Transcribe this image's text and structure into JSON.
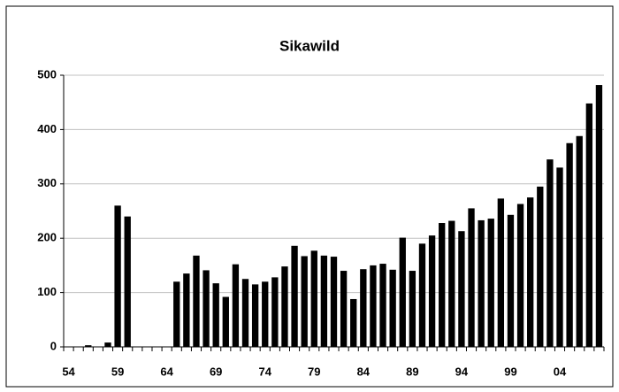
{
  "chart_data": {
    "type": "bar",
    "title": "Sikawild",
    "categories": [
      "54",
      null,
      null,
      null,
      null,
      "59",
      null,
      null,
      null,
      null,
      "64",
      null,
      null,
      null,
      null,
      "69",
      null,
      null,
      null,
      null,
      "74",
      null,
      null,
      null,
      null,
      "79",
      null,
      null,
      null,
      null,
      "84",
      null,
      null,
      null,
      null,
      "89",
      null,
      null,
      null,
      null,
      "94",
      null,
      null,
      null,
      null,
      "99",
      null,
      null,
      null,
      null,
      "04",
      null,
      null,
      null,
      null
    ],
    "values": [
      0,
      0,
      3,
      0,
      8,
      260,
      240,
      0,
      0,
      0,
      0,
      120,
      135,
      168,
      141,
      117,
      92,
      152,
      125,
      115,
      120,
      128,
      148,
      186,
      167,
      177,
      168,
      166,
      140,
      88,
      143,
      150,
      153,
      142,
      201,
      140,
      190,
      205,
      228,
      232,
      213,
      255,
      233,
      236,
      273,
      243,
      263,
      275,
      295,
      345,
      330,
      375,
      388,
      448,
      482
    ],
    "color": "#000000",
    "ylim": [
      0,
      500
    ],
    "yticks": [
      0,
      100,
      200,
      300,
      400,
      500
    ],
    "grid": true
  }
}
